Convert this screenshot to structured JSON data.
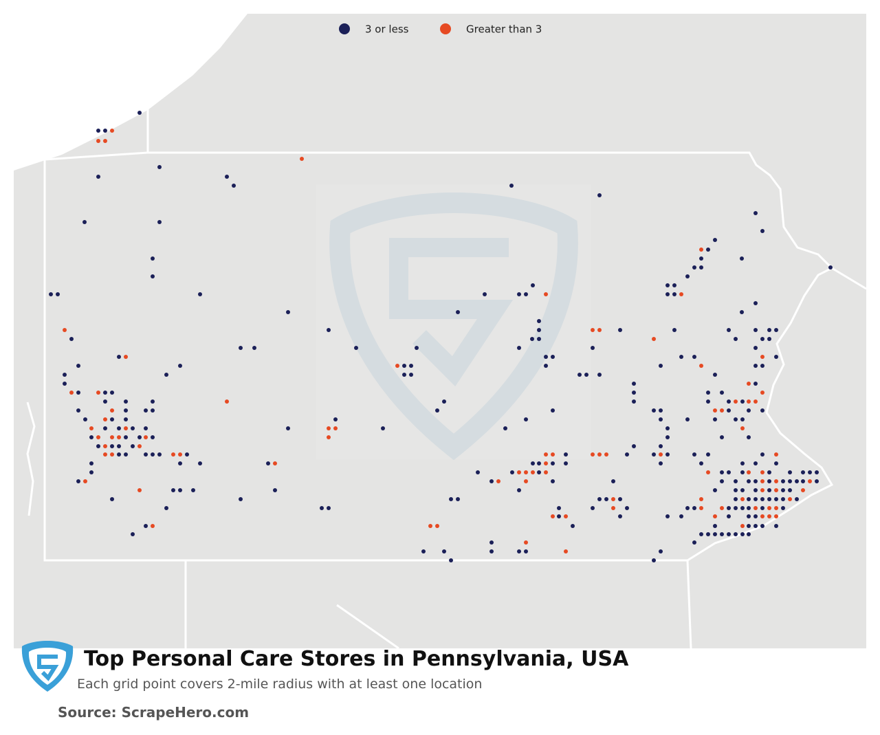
{
  "legend": [
    {
      "name": "3 or less",
      "color": "#1b2058"
    },
    {
      "name": "Greater than 3",
      "color": "#e64a23"
    }
  ],
  "title": "Top Personal Care Stores in Pennsylvania, USA",
  "subtitle": "Each grid point covers 2-mile radius with at least one location",
  "source": "Source: ScrapeHero.com"
}
